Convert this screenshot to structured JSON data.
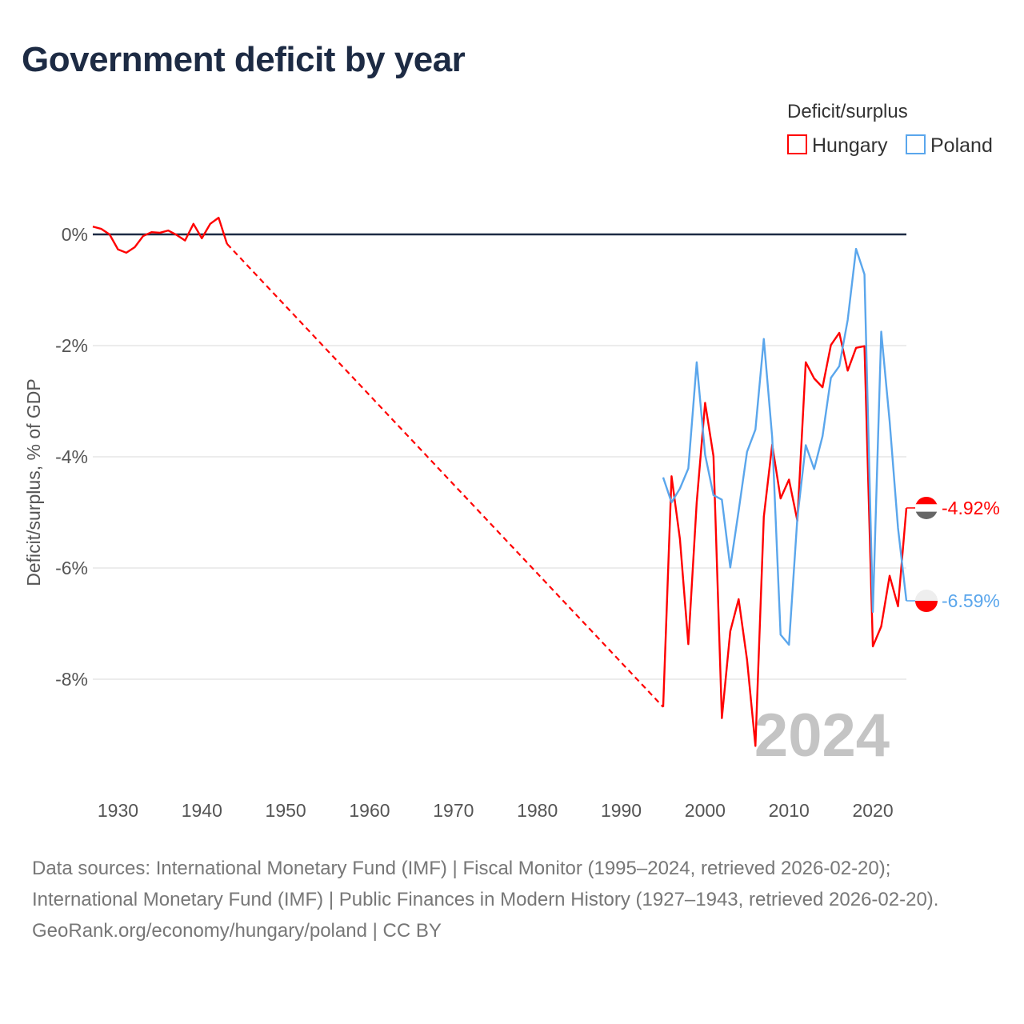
{
  "chart_data": {
    "type": "line",
    "title": "Government deficit by year",
    "xlabel": "",
    "ylabel": "Deficit/surplus, % of GDP",
    "xlim": [
      1927,
      2024
    ],
    "ylim": [
      -10,
      0.6
    ],
    "xticks": [
      1930,
      1940,
      1950,
      1960,
      1970,
      1980,
      1990,
      2000,
      2010,
      2020
    ],
    "yticks": [
      0,
      -2,
      -4,
      -6,
      -8
    ],
    "ytick_labels": [
      "0%",
      "-2%",
      "-4%",
      "-6%",
      "-8%"
    ],
    "grid": true,
    "legend": {
      "title": "Deficit/surplus",
      "placement": "top-right"
    },
    "year_watermark": "2024",
    "series": [
      {
        "name": "Hungary",
        "color": "#ff0000",
        "end_label": "-4.92%",
        "segments": [
          {
            "x": [
              1927,
              1928,
              1929,
              1930,
              1931,
              1932,
              1933,
              1934,
              1935,
              1936,
              1937,
              1938,
              1939,
              1940,
              1941,
              1942,
              1943
            ],
            "y": [
              0.14,
              0.1,
              0.0,
              -0.27,
              -0.33,
              -0.23,
              -0.03,
              0.04,
              0.03,
              0.07,
              -0.01,
              -0.11,
              0.19,
              -0.07,
              0.19,
              0.3,
              -0.17
            ]
          },
          {
            "x": [
              1995,
              1996,
              1997,
              1998,
              1999,
              2000,
              2001,
              2002,
              2003,
              2004,
              2005,
              2006,
              2007,
              2008,
              2009,
              2010,
              2011,
              2012,
              2013,
              2014,
              2015,
              2016,
              2017,
              2018,
              2019,
              2020,
              2021,
              2022,
              2023,
              2024
            ],
            "y": [
              -8.5,
              -4.35,
              -5.48,
              -7.37,
              -4.82,
              -3.03,
              -3.99,
              -8.7,
              -7.14,
              -6.56,
              -7.65,
              -9.2,
              -5.08,
              -3.78,
              -4.75,
              -4.41,
              -5.15,
              -2.3,
              -2.59,
              -2.75,
              -1.99,
              -1.77,
              -2.45,
              -2.04,
              -2.01,
              -7.41,
              -7.05,
              -6.14,
              -6.69,
              -4.92
            ]
          }
        ],
        "gap": {
          "from": [
            1943,
            -0.17
          ],
          "to": [
            1995,
            -8.5
          ],
          "style": "dashed"
        }
      },
      {
        "name": "Poland",
        "color": "#5aa6ec",
        "end_label": "-6.59%",
        "segments": [
          {
            "x": [
              1995,
              1996,
              1997,
              1998,
              1999,
              2000,
              2001,
              2002,
              2003,
              2004,
              2005,
              2006,
              2007,
              2008,
              2009,
              2010,
              2011,
              2012,
              2013,
              2014,
              2015,
              2016,
              2017,
              2018,
              2019,
              2020,
              2021,
              2022,
              2023,
              2024
            ],
            "y": [
              -4.37,
              -4.82,
              -4.57,
              -4.21,
              -2.3,
              -3.96,
              -4.69,
              -4.77,
              -5.99,
              -4.97,
              -3.91,
              -3.51,
              -1.88,
              -3.65,
              -7.2,
              -7.38,
              -5.1,
              -3.79,
              -4.22,
              -3.63,
              -2.58,
              -2.37,
              -1.54,
              -0.26,
              -0.72,
              -6.79,
              -1.75,
              -3.36,
              -5.28,
              -6.59
            ]
          }
        ]
      }
    ]
  },
  "sources": {
    "line1": "Data sources: International Monetary Fund (IMF) | Fiscal Monitor (1995–2024, retrieved 2026-02-20); International Monetary Fund (IMF) | Public Finances in Modern History (1927–1943, retrieved 2026-02-20).",
    "line2": "GeoRank.org/economy/hungary/poland | CC BY"
  }
}
